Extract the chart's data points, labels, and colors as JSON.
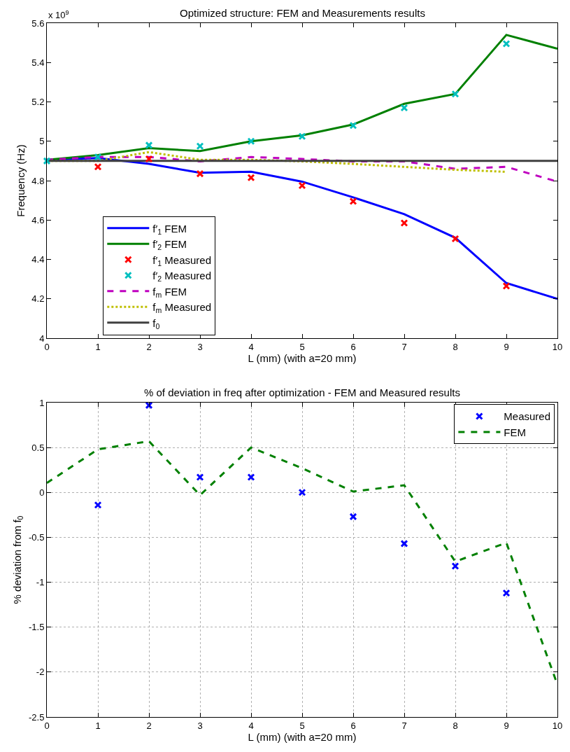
{
  "chart_data": [
    {
      "type": "line",
      "title": "Optimized structure: FEM and Measurements results",
      "xlabel": "L (mm) (with a=20 mm)",
      "ylabel": "Frequency (Hz)",
      "annotations": [
        "x 10$^{9}$"
      ],
      "x": [
        0,
        1,
        2,
        3,
        4,
        5,
        6,
        7,
        8,
        9,
        10
      ],
      "xlim": [
        0,
        10
      ],
      "xticks": [
        0,
        1,
        2,
        3,
        4,
        5,
        6,
        7,
        8,
        9,
        10
      ],
      "ylim": [
        4,
        5.6
      ],
      "yticks": [
        4,
        4.2,
        4.4,
        4.6,
        4.8,
        5,
        5.2,
        5.4,
        5.6
      ],
      "grid": false,
      "legend": "bottom left",
      "series": [
        {
          "name": "f′$_{1}$ FEM",
          "color": "#0000ff",
          "line_style": "solid",
          "values": [
            4.906,
            4.915,
            4.885,
            4.84,
            4.845,
            4.795,
            4.715,
            4.63,
            4.51,
            4.28,
            4.2
          ]
        },
        {
          "name": "f′$_{2}$ FEM",
          "color": "#008000",
          "line_style": "solid",
          "values": [
            4.906,
            4.93,
            4.965,
            4.95,
            5.0,
            5.03,
            5.085,
            5.19,
            5.24,
            5.54,
            5.47
          ]
        },
        {
          "name": "f′$_{1}$ Measured",
          "type": "scatter",
          "marker": "cross",
          "color": "#ff0000",
          "values": [
            null,
            4.87,
            4.91,
            4.835,
            4.815,
            4.775,
            4.695,
            4.585,
            4.505,
            4.265,
            null
          ]
        },
        {
          "name": "f′$_{2}$ Measured",
          "type": "scatter",
          "marker": "cross",
          "color": "#00bfbf",
          "values": [
            4.9,
            4.92,
            4.98,
            4.975,
            5.0,
            5.025,
            5.08,
            5.17,
            5.24,
            5.495,
            null
          ]
        },
        {
          "name": "f$_{m}$ FEM",
          "color": "#bf00bf",
          "line_style": "dashed",
          "values": [
            4.906,
            4.92,
            4.92,
            4.898,
            4.92,
            4.91,
            4.898,
            4.898,
            4.86,
            4.87,
            4.795
          ]
        },
        {
          "name": "f$_{m}$ Measured",
          "color": "#bfbf00",
          "line_style": "dotted",
          "values": [
            4.9,
            4.9,
            4.945,
            4.906,
            4.906,
            4.898,
            4.885,
            4.87,
            4.855,
            4.845,
            null
          ]
        },
        {
          "name": "f$_{0}$",
          "color": "#404040",
          "line_style": "solid",
          "values": [
            4.9,
            4.9,
            4.9,
            4.9,
            4.9,
            4.9,
            4.9,
            4.9,
            4.9,
            4.9,
            4.9
          ]
        }
      ]
    },
    {
      "type": "line",
      "title": "% of deviation in freq after optimization - FEM and Measured results",
      "xlabel": "L (mm) (with a=20 mm)",
      "ylabel": "% deviation from f$_{0}$",
      "x": [
        0,
        1,
        2,
        3,
        4,
        5,
        6,
        7,
        8,
        9,
        10
      ],
      "xlim": [
        0,
        10
      ],
      "xticks": [
        0,
        1,
        2,
        3,
        4,
        5,
        6,
        7,
        8,
        9,
        10
      ],
      "ylim": [
        -2.5,
        1
      ],
      "yticks": [
        -2.5,
        -2,
        -1.5,
        -1,
        -0.5,
        0,
        0.5,
        1
      ],
      "grid": true,
      "legend": "top right",
      "series": [
        {
          "name": "Measured",
          "type": "scatter",
          "marker": "cross",
          "color": "#0000ff",
          "values": [
            null,
            -0.14,
            0.97,
            0.17,
            0.17,
            0,
            -0.27,
            -0.57,
            -0.82,
            -1.12,
            null
          ]
        },
        {
          "name": "FEM",
          "color": "#008000",
          "line_style": "dashed",
          "values": [
            0.105,
            0.48,
            0.57,
            -0.03,
            0.5,
            0.27,
            0.01,
            0.08,
            -0.77,
            -0.56,
            -2.14
          ]
        }
      ]
    }
  ]
}
